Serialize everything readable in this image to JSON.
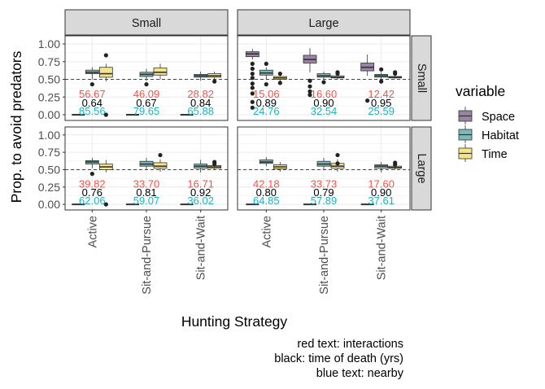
{
  "chart_data": {
    "type": "box",
    "facet_cols": [
      "Small",
      "Large"
    ],
    "facet_rows": [
      "Small",
      "Large"
    ],
    "categories": [
      "Active",
      "Sit-and-Pursue",
      "Sit-and-Wait"
    ],
    "ylabel": "Prop. to avoid predators",
    "xlabel": "Hunting Strategy",
    "ylim": [
      0,
      1.0
    ],
    "yticks": [
      "0.00",
      "0.25",
      "0.50",
      "0.75",
      "1.00"
    ],
    "reference_line": 0.5,
    "legend": {
      "title": "variable",
      "position": "right",
      "items": [
        {
          "name": "Space",
          "color": "#9a84a6"
        },
        {
          "name": "Habitat",
          "color": "#7fb9b5"
        },
        {
          "name": "Time",
          "color": "#f6e585"
        }
      ]
    },
    "caption": [
      "red text: interactions",
      "black: time of death (yrs)",
      "blue text: nearby"
    ],
    "text_colors": {
      "interactions": "#f0524b",
      "time_of_death": "#000000",
      "nearby": "#18b5bd"
    },
    "panels": [
      {
        "col": "Small",
        "row": "Small",
        "labels": {
          "interactions": [
            "56.67",
            "46.09",
            "28.82"
          ],
          "time_of_death": [
            "0.64",
            "0.67",
            "0.84"
          ],
          "nearby": [
            "85.56",
            "79.65",
            "65.88"
          ]
        },
        "boxes": [
          [
            [
              0,
              0,
              0,
              0,
              0
            ],
            [
              0.5,
              0.58,
              0.6,
              0.63,
              0.67
            ],
            [
              0.47,
              0.53,
              0.58,
              0.67,
              0.72
            ]
          ],
          [
            [
              0,
              0,
              0,
              0,
              0
            ],
            [
              0.48,
              0.54,
              0.57,
              0.6,
              0.65
            ],
            [
              0.5,
              0.56,
              0.6,
              0.66,
              0.72
            ]
          ],
          [
            [
              0,
              0,
              0,
              0,
              0
            ],
            [
              0.48,
              0.53,
              0.55,
              0.57,
              0.61
            ],
            [
              0.5,
              0.53,
              0.55,
              0.58,
              0.61
            ]
          ]
        ],
        "outliers": [
          [
            [],
            [
              0.43
            ],
            [
              0.84,
              0.0
            ]
          ],
          [
            [],
            [
              0.43
            ],
            []
          ],
          [
            [],
            [],
            [
              0.47
            ]
          ]
        ]
      },
      {
        "col": "Large",
        "row": "Small",
        "labels": {
          "interactions": [
            "15.06",
            "16.60",
            "12.42"
          ],
          "time_of_death": [
            "0.89",
            "0.90",
            "0.95"
          ],
          "nearby": [
            "24.76",
            "32.54",
            "25.59"
          ]
        },
        "boxes": [
          [
            [
              0.78,
              0.82,
              0.86,
              0.89,
              0.93
            ],
            [
              0.5,
              0.56,
              0.59,
              0.63,
              0.67
            ],
            [
              0.47,
              0.5,
              0.52,
              0.54,
              0.57
            ]
          ],
          [
            [
              0.6,
              0.73,
              0.78,
              0.84,
              0.94
            ],
            [
              0.5,
              0.53,
              0.55,
              0.58,
              0.61
            ],
            [
              0.5,
              0.52,
              0.53,
              0.55,
              0.57
            ]
          ],
          [
            [
              0.55,
              0.62,
              0.67,
              0.73,
              0.85
            ],
            [
              0.5,
              0.53,
              0.55,
              0.57,
              0.6
            ],
            [
              0.51,
              0.52,
              0.53,
              0.54,
              0.55
            ]
          ]
        ],
        "outliers": [
          [
            [
              0.72,
              0.65,
              0.58,
              0.52,
              0.44,
              0.38,
              0.3,
              0.18,
              0.1
            ],
            [
              0.72,
              0.43
            ],
            [
              0.58,
              0.45
            ]
          ],
          [
            [
              0.48,
              0.4,
              0.33,
              0.28
            ],
            [
              0.46
            ],
            [
              0.6,
              0.58
            ]
          ],
          [
            [
              0.2
            ],
            [
              0.64,
              0.47
            ],
            [
              0.6,
              0.58
            ]
          ]
        ]
      },
      {
        "col": "Small",
        "row": "Large",
        "labels": {
          "interactions": [
            "39.82",
            "33.70",
            "16.71"
          ],
          "time_of_death": [
            "0.76",
            "0.81",
            "0.92"
          ],
          "nearby": [
            "62.06",
            "59.07",
            "36.02"
          ]
        },
        "boxes": [
          [
            [
              0,
              0,
              0,
              0,
              0
            ],
            [
              0.52,
              0.58,
              0.61,
              0.63,
              0.67
            ],
            [
              0.46,
              0.5,
              0.54,
              0.58,
              0.64
            ]
          ],
          [
            [
              0,
              0,
              0,
              0,
              0
            ],
            [
              0.5,
              0.55,
              0.58,
              0.62,
              0.67
            ],
            [
              0.47,
              0.52,
              0.55,
              0.6,
              0.65
            ]
          ],
          [
            [
              0,
              0,
              0,
              0,
              0
            ],
            [
              0.46,
              0.52,
              0.55,
              0.58,
              0.64
            ],
            [
              0.5,
              0.52,
              0.54,
              0.56,
              0.58
            ]
          ]
        ],
        "outliers": [
          [
            [],
            [
              0.44
            ],
            [
              0.0
            ]
          ],
          [
            [],
            [],
            [
              0.71
            ]
          ],
          [
            [],
            [],
            [
              0.61,
              0.58
            ]
          ]
        ]
      },
      {
        "col": "Large",
        "row": "Large",
        "labels": {
          "interactions": [
            "42.18",
            "33.73",
            "17.60"
          ],
          "time_of_death": [
            "0.80",
            "0.79",
            "0.90"
          ],
          "nearby": [
            "64.85",
            "57.89",
            "37.61"
          ]
        },
        "boxes": [
          [
            [
              0,
              0,
              0,
              0,
              0
            ],
            [
              0.55,
              0.59,
              0.61,
              0.64,
              0.68
            ],
            [
              0.47,
              0.51,
              0.54,
              0.57,
              0.61
            ]
          ],
          [
            [
              0,
              0,
              0,
              0,
              0
            ],
            [
              0.5,
              0.55,
              0.58,
              0.62,
              0.67
            ],
            [
              0.47,
              0.52,
              0.55,
              0.59,
              0.65
            ]
          ],
          [
            [
              0,
              0,
              0,
              0,
              0
            ],
            [
              0.46,
              0.52,
              0.55,
              0.57,
              0.61
            ],
            [
              0.5,
              0.52,
              0.53,
              0.55,
              0.57
            ]
          ]
        ],
        "outliers": [
          [
            [],
            [],
            []
          ],
          [
            [],
            [],
            [
              0.71,
              0.59
            ]
          ],
          [
            [],
            [],
            [
              0.6,
              0.57
            ]
          ]
        ]
      }
    ]
  }
}
